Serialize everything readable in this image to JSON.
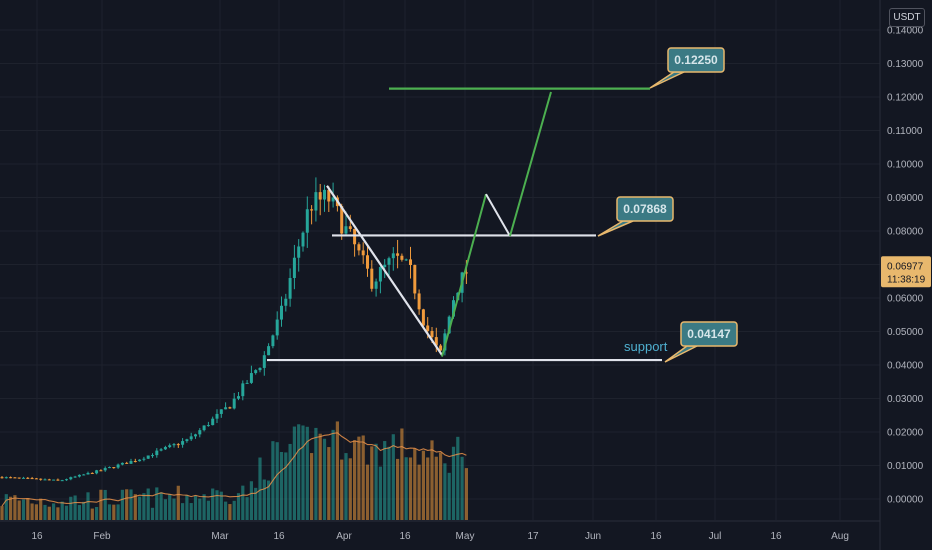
{
  "chart_data": {
    "type": "candlestick",
    "quote_currency": "USDT",
    "x_ticks": [
      "16",
      "Feb",
      "Mar",
      "16",
      "Apr",
      "16",
      "May",
      "17",
      "Jun",
      "16",
      "Jul",
      "16",
      "Aug"
    ],
    "y_ticks": [
      "0.14000",
      "0.13000",
      "0.12000",
      "0.11000",
      "0.10000",
      "0.09000",
      "0.08000",
      "0.07000",
      "0.06000",
      "0.05000",
      "0.04000",
      "0.03000",
      "0.02000",
      "0.01000",
      "0.00000"
    ],
    "ylim": [
      -0.003,
      0.146
    ],
    "current_price": "0.06977",
    "countdown": "11:38:19",
    "levels": [
      {
        "label": "0.12250",
        "value": 0.1225,
        "color": "#4caf50"
      },
      {
        "label": "0.07868",
        "value": 0.07868,
        "color": "#e0e3eb"
      },
      {
        "label": "0.04147",
        "value": 0.04147,
        "color": "#e0e3eb"
      }
    ],
    "support_label": "support",
    "colors": {
      "up": "#26a69a",
      "down": "#ef9a3c",
      "green_path": "#4caf50",
      "white_path": "#e0e3eb",
      "volume_ma": "#e8914a",
      "callout_bg": "#3b7a84",
      "callout_border": "#e8b86d"
    },
    "projection_path": [
      0.0425,
      0.0778,
      0.091,
      0.0785,
      0.1215
    ]
  }
}
